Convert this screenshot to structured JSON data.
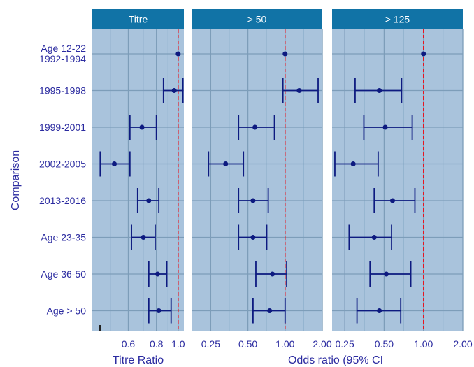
{
  "chart_data": {
    "type": "forest",
    "y_axis_title": "Comparison",
    "rows": [
      {
        "label_lines": [
          "Age 12-22",
          "1992-1994"
        ]
      },
      {
        "label_lines": [
          "1995-1998"
        ]
      },
      {
        "label_lines": [
          "1999-2001"
        ]
      },
      {
        "label_lines": [
          "2002-2005"
        ]
      },
      {
        "label_lines": [
          "2013-2016"
        ]
      },
      {
        "label_lines": [
          "Age 23-35"
        ]
      },
      {
        "label_lines": [
          "Age 36-50"
        ]
      },
      {
        "label_lines": [
          "Age > 50"
        ]
      }
    ],
    "reference_line": 1.0,
    "scale": "log",
    "colors": {
      "panel_bg": "#a9c3dc",
      "strip_bg": "#1173a6",
      "strip_text": "#ffffff",
      "point": "#0d1a80",
      "ci": "#0d1a80",
      "grid_major": "#7d9db9",
      "grid_minor": "#8fb0cc",
      "ref_line": "#e8141f",
      "axis_text": "#2b2ba0"
    },
    "panels": [
      {
        "strip": "Titre",
        "x_title": "Titre Ratio",
        "xlim": [
          0.415,
          1.06
        ],
        "ticks": [
          0.6,
          0.8,
          1.0
        ],
        "tick_labels": [
          "0.6",
          "0.8",
          "1.0"
        ],
        "minor_ticks": [
          0.5,
          0.7,
          0.9
        ],
        "estimates": [
          1.0,
          0.96,
          0.69,
          0.52,
          0.74,
          0.7,
          0.81,
          0.82
        ],
        "lower": [
          null,
          0.86,
          0.61,
          0.45,
          0.66,
          0.62,
          0.74,
          0.74
        ],
        "upper": [
          null,
          1.05,
          0.8,
          0.61,
          0.82,
          0.79,
          0.89,
          0.93
        ]
      },
      {
        "strip": "> 50",
        "x_title": "Odds ratio (95% CI",
        "xlim": [
          0.175,
          2.0
        ],
        "ticks": [
          0.25,
          0.5,
          1.0,
          2.0
        ],
        "tick_labels": [
          "0.25",
          "0.50",
          "1.00",
          "2.00"
        ],
        "minor_ticks": [
          0.3536,
          0.7071,
          1.4142
        ],
        "estimates": [
          1.0,
          1.3,
          0.57,
          0.33,
          0.55,
          0.55,
          0.79,
          0.75
        ],
        "lower": [
          null,
          0.96,
          0.42,
          0.24,
          0.42,
          0.42,
          0.58,
          0.55
        ],
        "upper": [
          null,
          1.85,
          0.82,
          0.46,
          0.73,
          0.71,
          1.03,
          1.0
        ]
      },
      {
        "strip": "> 125",
        "x_title": "",
        "xlim": [
          0.2,
          2.0
        ],
        "ticks": [
          0.25,
          0.5,
          1.0,
          2.0
        ],
        "tick_labels": [
          "0.25",
          "0.50",
          "1.00",
          "2.00"
        ],
        "minor_ticks": [
          0.3536,
          0.7071,
          1.4142
        ],
        "estimates": [
          1.0,
          0.46,
          0.51,
          0.29,
          0.58,
          0.42,
          0.52,
          0.46
        ],
        "lower": [
          null,
          0.3,
          0.35,
          0.21,
          0.42,
          0.27,
          0.39,
          0.31
        ],
        "upper": [
          null,
          0.68,
          0.82,
          0.45,
          0.86,
          0.57,
          0.8,
          0.67
        ]
      }
    ]
  }
}
